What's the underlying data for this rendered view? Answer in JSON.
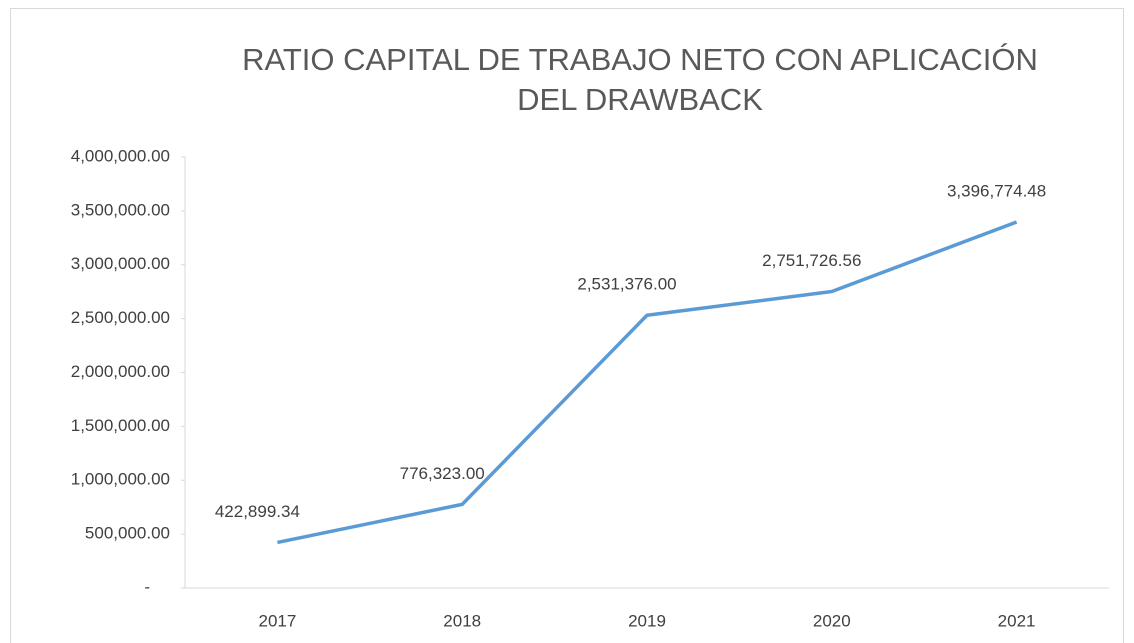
{
  "chart_data": {
    "type": "line",
    "title": "RATIO CAPITAL DE TRABAJO NETO CON APLICACIÓN DEL DRAWBACK",
    "categories": [
      "2017",
      "2018",
      "2019",
      "2020",
      "2021"
    ],
    "series": [
      {
        "name": "Ratio capital de trabajo neto",
        "color": "#5b9bd5",
        "values": [
          422899.34,
          776323.0,
          2531376.0,
          2751726.56,
          3396774.48
        ],
        "value_labels": [
          "422,899.34",
          "776,323.00",
          "2,531,376.00",
          "2,751,726.56",
          "3,396,774.48"
        ]
      }
    ],
    "ylim": [
      0,
      4000000
    ],
    "yticks": [
      {
        "value": 0,
        "label": "-"
      },
      {
        "value": 500000,
        "label": "500,000.00"
      },
      {
        "value": 1000000,
        "label": "1,000,000.00"
      },
      {
        "value": 1500000,
        "label": "1,500,000.00"
      },
      {
        "value": 2000000,
        "label": "2,000,000.00"
      },
      {
        "value": 2500000,
        "label": "2,500,000.00"
      },
      {
        "value": 3000000,
        "label": "3,000,000.00"
      },
      {
        "value": 3500000,
        "label": "3,500,000.00"
      },
      {
        "value": 4000000,
        "label": "4,000,000.00"
      }
    ],
    "grid": false
  }
}
